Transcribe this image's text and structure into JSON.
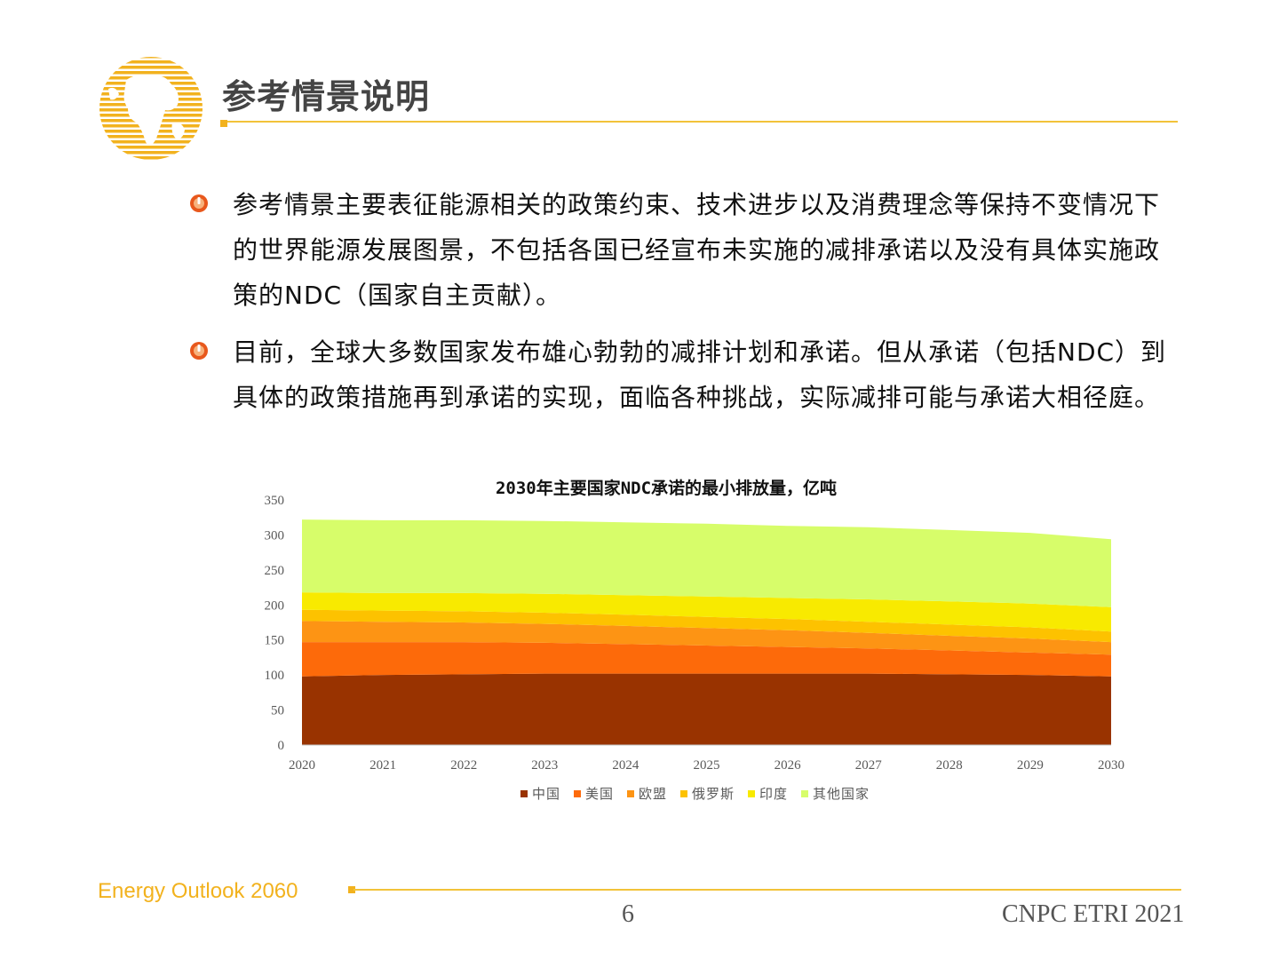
{
  "title": "参考情景说明",
  "bullets": [
    "参考情景主要表征能源相关的政策约束、技术进步以及消费理念等保持不变情况下的世界能源发展图景，不包括各国已经宣布未实施的减排承诺以及没有具体实施政策的NDC（国家自主贡献）。",
    "目前，全球大多数国家发布雄心勃勃的减排计划和承诺。但从承诺（包括NDC）到具体的政策措施再到承诺的实现，面临各种挑战，实际减排可能与承诺大相径庭。"
  ],
  "colors": {
    "accent": "#f2b21e",
    "rule": "#f2c33a",
    "bullet_icon": "#e8581c"
  },
  "icons": {
    "logo": "globe-logo-icon",
    "bullet": "power-bullet-icon"
  },
  "footer": {
    "left": "Energy Outlook 2060",
    "page": "6",
    "right": "CNPC ETRI 2021"
  },
  "chart_data": {
    "type": "area",
    "stacked": true,
    "title": "2030年主要国家NDC承诺的最小排放量，亿吨",
    "x": [
      2020,
      2021,
      2022,
      2023,
      2024,
      2025,
      2026,
      2027,
      2028,
      2029,
      2030
    ],
    "ylim": [
      0,
      350
    ],
    "yticks": [
      0,
      50,
      100,
      150,
      200,
      250,
      300,
      350
    ],
    "legend_position": "bottom",
    "grid": false,
    "series": [
      {
        "name": "中国",
        "color": "#993300",
        "values": [
          98,
          100,
          101,
          102,
          102,
          102,
          102,
          102,
          101,
          100,
          98
        ]
      },
      {
        "name": "美国",
        "color": "#fd6a0a",
        "values": [
          49,
          47,
          46,
          44,
          42,
          40,
          38,
          36,
          34,
          32,
          31
        ]
      },
      {
        "name": "欧盟",
        "color": "#fd9414",
        "values": [
          30,
          29,
          28,
          27,
          26,
          25,
          24,
          22,
          21,
          20,
          18
        ]
      },
      {
        "name": "俄罗斯",
        "color": "#fdc200",
        "values": [
          16,
          16,
          16,
          16,
          16,
          16,
          16,
          16,
          16,
          16,
          15
        ]
      },
      {
        "name": "印度",
        "color": "#f8ea00",
        "values": [
          25,
          25,
          26,
          27,
          28,
          29,
          30,
          32,
          33,
          34,
          35
        ]
      },
      {
        "name": "其他国家",
        "color": "#d7fd6a",
        "values": [
          104,
          104,
          104,
          104,
          104,
          104,
          103,
          103,
          102,
          101,
          97
        ]
      }
    ]
  }
}
